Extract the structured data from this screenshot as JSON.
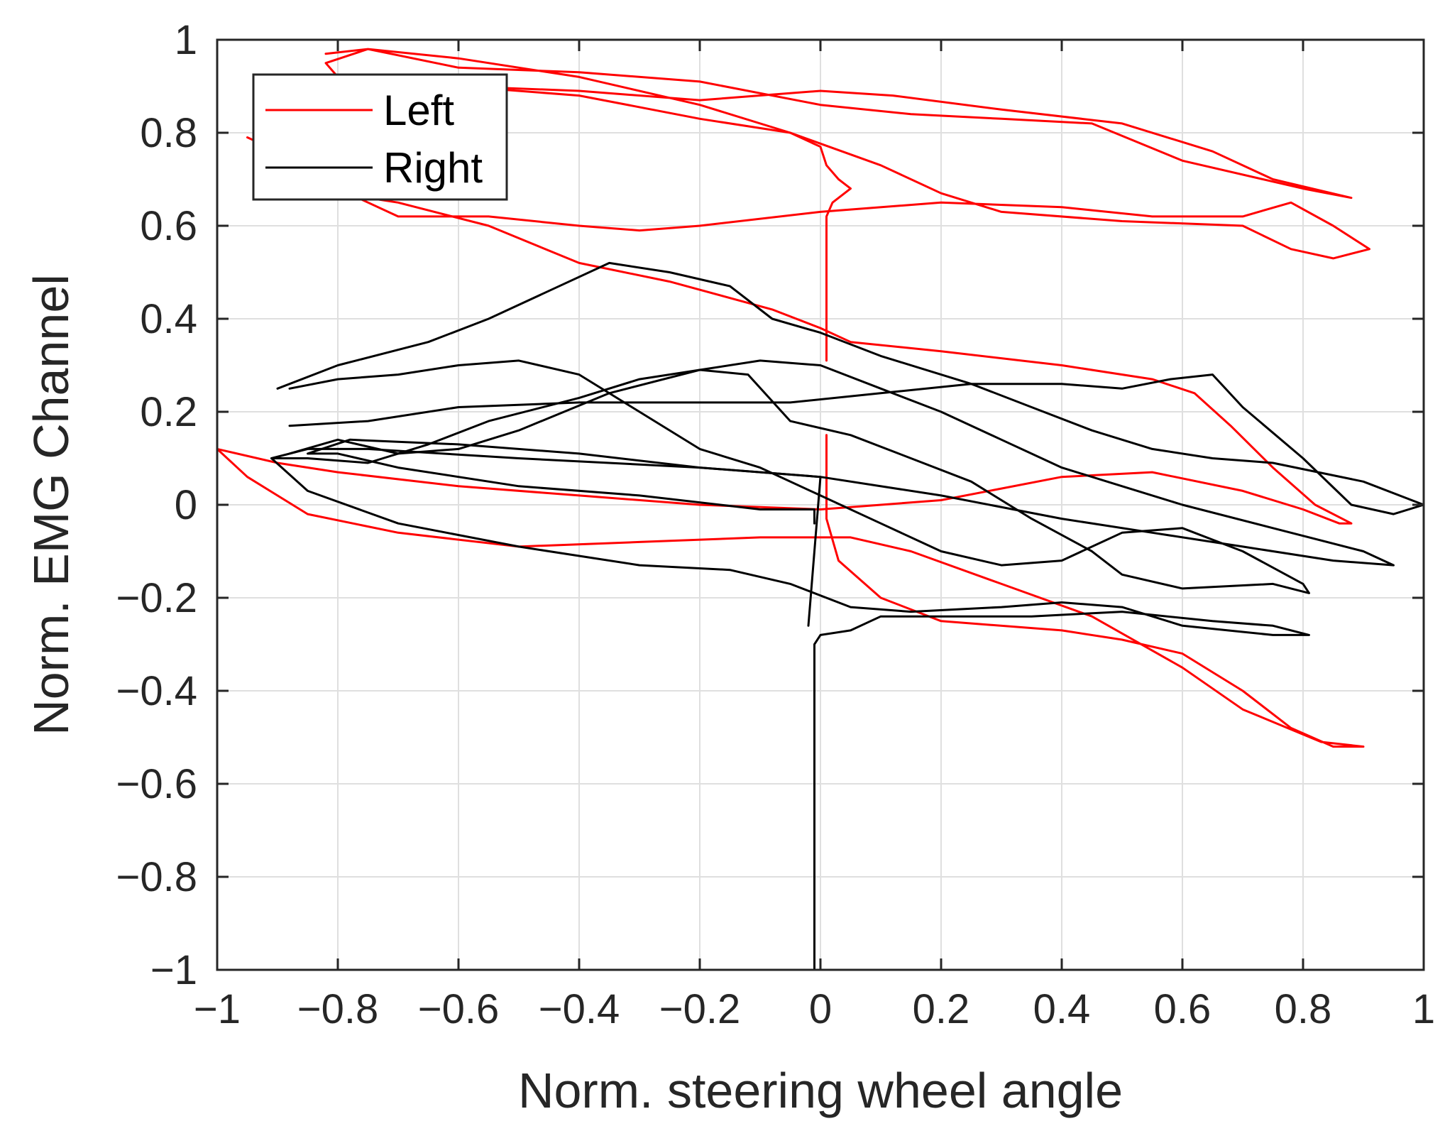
{
  "chart_data": {
    "type": "line",
    "title": "",
    "xlabel": "Norm. steering wheel angle",
    "ylabel": "Norm. EMG Channel",
    "xlim": [
      -1,
      1
    ],
    "ylim": [
      -1,
      1
    ],
    "grid": true,
    "legend_position": "top-left",
    "x_ticks": [
      -1,
      -0.8,
      -0.6,
      -0.4,
      -0.2,
      0,
      0.2,
      0.4,
      0.6,
      0.8,
      1
    ],
    "x_tick_labels": [
      "−1",
      "−0.8",
      "−0.6",
      "−0.4",
      "−0.2",
      "0",
      "0.2",
      "0.4",
      "0.6",
      "0.8",
      "1"
    ],
    "y_ticks": [
      -1,
      -0.8,
      -0.6,
      -0.4,
      -0.2,
      0,
      0.2,
      0.4,
      0.6,
      0.8,
      1
    ],
    "y_tick_labels": [
      "−1",
      "−0.8",
      "−0.6",
      "−0.4",
      "−0.2",
      "0",
      "0.2",
      "0.4",
      "0.6",
      "0.8",
      "1"
    ],
    "series": [
      {
        "name": "Left",
        "color": "#ff0000",
        "points": [
          [
            0.01,
            0.31
          ],
          [
            0.01,
            0.62
          ],
          [
            0.02,
            0.65
          ],
          [
            0.05,
            0.68
          ],
          [
            0.03,
            0.7
          ],
          [
            0.01,
            0.73
          ],
          [
            0.0,
            0.77
          ],
          [
            -0.05,
            0.8
          ],
          [
            -0.2,
            0.86
          ],
          [
            -0.4,
            0.92
          ],
          [
            -0.6,
            0.96
          ],
          [
            -0.75,
            0.98
          ],
          [
            -0.82,
            0.95
          ],
          [
            -0.8,
            0.92
          ],
          [
            -0.6,
            0.9
          ],
          [
            -0.4,
            0.89
          ],
          [
            -0.2,
            0.87
          ],
          [
            0.0,
            0.89
          ],
          [
            0.12,
            0.88
          ],
          [
            0.3,
            0.85
          ],
          [
            0.5,
            0.82
          ],
          [
            0.65,
            0.76
          ],
          [
            0.75,
            0.7
          ],
          [
            0.88,
            0.66
          ],
          [
            0.8,
            0.68
          ],
          [
            0.6,
            0.74
          ],
          [
            0.45,
            0.82
          ],
          [
            0.3,
            0.83
          ],
          [
            0.15,
            0.84
          ],
          [
            0.0,
            0.86
          ],
          [
            -0.2,
            0.91
          ],
          [
            -0.4,
            0.93
          ],
          [
            -0.6,
            0.94
          ],
          [
            -0.75,
            0.98
          ],
          [
            -0.82,
            0.97
          ]
        ]
      },
      {
        "name": "Left",
        "color": "#ff0000",
        "points": [
          [
            -0.95,
            0.79
          ],
          [
            -0.9,
            0.76
          ],
          [
            -0.8,
            0.68
          ],
          [
            -0.7,
            0.62
          ],
          [
            -0.55,
            0.62
          ],
          [
            -0.4,
            0.6
          ],
          [
            -0.3,
            0.59
          ],
          [
            -0.2,
            0.6
          ],
          [
            0.0,
            0.63
          ],
          [
            0.2,
            0.65
          ],
          [
            0.4,
            0.64
          ],
          [
            0.55,
            0.62
          ],
          [
            0.7,
            0.62
          ],
          [
            0.78,
            0.65
          ],
          [
            0.85,
            0.6
          ],
          [
            0.91,
            0.55
          ],
          [
            0.85,
            0.53
          ],
          [
            0.78,
            0.55
          ],
          [
            0.7,
            0.6
          ],
          [
            0.5,
            0.61
          ],
          [
            0.3,
            0.63
          ],
          [
            0.2,
            0.67
          ],
          [
            0.1,
            0.73
          ],
          [
            -0.05,
            0.8
          ],
          [
            -0.2,
            0.83
          ],
          [
            -0.4,
            0.88
          ],
          [
            -0.6,
            0.9
          ],
          [
            -0.75,
            0.92
          ]
        ]
      },
      {
        "name": "Left",
        "color": "#ff0000",
        "points": [
          [
            -1.0,
            0.12
          ],
          [
            -0.9,
            0.09
          ],
          [
            -0.8,
            0.07
          ],
          [
            -0.6,
            0.04
          ],
          [
            -0.4,
            0.02
          ],
          [
            -0.2,
            0.0
          ],
          [
            0.0,
            -0.01
          ],
          [
            0.2,
            0.01
          ],
          [
            0.4,
            0.06
          ],
          [
            0.55,
            0.07
          ],
          [
            0.7,
            0.03
          ],
          [
            0.8,
            -0.01
          ],
          [
            0.86,
            -0.04
          ],
          [
            0.88,
            -0.04
          ],
          [
            0.82,
            0.0
          ],
          [
            0.75,
            0.08
          ],
          [
            0.68,
            0.17
          ],
          [
            0.62,
            0.24
          ],
          [
            0.55,
            0.27
          ],
          [
            0.4,
            0.3
          ],
          [
            0.2,
            0.33
          ],
          [
            0.05,
            0.35
          ],
          [
            0.0,
            0.38
          ],
          [
            -0.08,
            0.42
          ],
          [
            -0.25,
            0.48
          ],
          [
            -0.4,
            0.52
          ],
          [
            -0.55,
            0.6
          ],
          [
            -0.7,
            0.65
          ],
          [
            -0.85,
            0.68
          ],
          [
            -0.93,
            0.7
          ]
        ]
      },
      {
        "name": "Left",
        "color": "#ff0000",
        "points": [
          [
            0.01,
            0.15
          ],
          [
            0.01,
            -0.03
          ],
          [
            0.03,
            -0.12
          ],
          [
            0.1,
            -0.2
          ],
          [
            0.2,
            -0.25
          ],
          [
            0.4,
            -0.27
          ],
          [
            0.5,
            -0.29
          ],
          [
            0.6,
            -0.32
          ],
          [
            0.7,
            -0.4
          ],
          [
            0.78,
            -0.48
          ],
          [
            0.85,
            -0.52
          ],
          [
            0.9,
            -0.52
          ],
          [
            0.83,
            -0.51
          ],
          [
            0.7,
            -0.44
          ],
          [
            0.6,
            -0.35
          ],
          [
            0.45,
            -0.24
          ],
          [
            0.3,
            -0.17
          ],
          [
            0.15,
            -0.1
          ],
          [
            0.05,
            -0.07
          ],
          [
            -0.1,
            -0.07
          ],
          [
            -0.3,
            -0.08
          ],
          [
            -0.5,
            -0.09
          ],
          [
            -0.7,
            -0.06
          ],
          [
            -0.85,
            -0.02
          ],
          [
            -0.95,
            0.06
          ],
          [
            -1.0,
            0.12
          ]
        ]
      },
      {
        "name": "Right",
        "color": "#000000",
        "points": [
          [
            -0.9,
            0.25
          ],
          [
            -0.8,
            0.3
          ],
          [
            -0.65,
            0.35
          ],
          [
            -0.55,
            0.4
          ],
          [
            -0.45,
            0.46
          ],
          [
            -0.35,
            0.52
          ],
          [
            -0.25,
            0.5
          ],
          [
            -0.15,
            0.47
          ],
          [
            -0.08,
            0.4
          ],
          [
            0.0,
            0.37
          ],
          [
            0.1,
            0.32
          ],
          [
            0.25,
            0.26
          ],
          [
            0.35,
            0.21
          ],
          [
            0.45,
            0.16
          ],
          [
            0.55,
            0.12
          ],
          [
            0.65,
            0.1
          ],
          [
            0.75,
            0.09
          ],
          [
            0.9,
            0.05
          ],
          [
            1.0,
            0.0
          ],
          [
            0.95,
            -0.02
          ],
          [
            0.88,
            0.0
          ],
          [
            0.8,
            0.1
          ],
          [
            0.7,
            0.21
          ],
          [
            0.65,
            0.28
          ],
          [
            0.58,
            0.27
          ],
          [
            0.5,
            0.25
          ],
          [
            0.4,
            0.26
          ],
          [
            0.25,
            0.26
          ],
          [
            0.1,
            0.24
          ],
          [
            -0.05,
            0.22
          ],
          [
            -0.2,
            0.22
          ],
          [
            -0.4,
            0.22
          ],
          [
            -0.6,
            0.21
          ],
          [
            -0.75,
            0.18
          ],
          [
            -0.88,
            0.17
          ]
        ]
      },
      {
        "name": "Right",
        "color": "#000000",
        "points": [
          [
            -0.88,
            0.25
          ],
          [
            -0.8,
            0.27
          ],
          [
            -0.7,
            0.28
          ],
          [
            -0.6,
            0.3
          ],
          [
            -0.5,
            0.31
          ],
          [
            -0.4,
            0.28
          ],
          [
            -0.3,
            0.2
          ],
          [
            -0.2,
            0.12
          ],
          [
            -0.1,
            0.08
          ],
          [
            0.0,
            0.02
          ],
          [
            0.1,
            -0.04
          ],
          [
            0.2,
            -0.1
          ],
          [
            0.3,
            -0.13
          ],
          [
            0.4,
            -0.12
          ],
          [
            0.5,
            -0.06
          ],
          [
            0.6,
            -0.05
          ],
          [
            0.7,
            -0.1
          ],
          [
            0.8,
            -0.17
          ],
          [
            0.81,
            -0.19
          ],
          [
            0.75,
            -0.17
          ],
          [
            0.6,
            -0.18
          ],
          [
            0.5,
            -0.15
          ],
          [
            0.45,
            -0.1
          ],
          [
            0.35,
            -0.03
          ],
          [
            0.25,
            0.05
          ],
          [
            0.15,
            0.1
          ],
          [
            0.05,
            0.15
          ],
          [
            -0.05,
            0.18
          ],
          [
            -0.12,
            0.28
          ],
          [
            -0.2,
            0.29
          ],
          [
            -0.3,
            0.27
          ],
          [
            -0.4,
            0.23
          ],
          [
            -0.55,
            0.18
          ],
          [
            -0.65,
            0.13
          ],
          [
            -0.75,
            0.09
          ],
          [
            -0.85,
            0.1
          ],
          [
            -0.91,
            0.1
          ]
        ]
      },
      {
        "name": "Right",
        "color": "#000000",
        "points": [
          [
            -0.01,
            -0.04
          ],
          [
            -0.01,
            -0.01
          ],
          [
            -0.1,
            -0.01
          ],
          [
            -0.3,
            0.02
          ],
          [
            -0.5,
            0.04
          ],
          [
            -0.7,
            0.08
          ],
          [
            -0.8,
            0.11
          ],
          [
            -0.85,
            0.11
          ],
          [
            -0.78,
            0.14
          ],
          [
            -0.6,
            0.13
          ],
          [
            -0.4,
            0.11
          ],
          [
            -0.2,
            0.08
          ],
          [
            0.0,
            0.06
          ],
          [
            0.2,
            0.02
          ],
          [
            0.4,
            -0.03
          ],
          [
            0.55,
            -0.06
          ],
          [
            0.7,
            -0.09
          ],
          [
            0.85,
            -0.12
          ],
          [
            0.95,
            -0.13
          ],
          [
            0.9,
            -0.1
          ],
          [
            0.75,
            -0.05
          ],
          [
            0.6,
            0.0
          ],
          [
            0.5,
            0.04
          ],
          [
            0.4,
            0.08
          ],
          [
            0.3,
            0.14
          ],
          [
            0.2,
            0.2
          ],
          [
            0.1,
            0.25
          ],
          [
            0.0,
            0.3
          ],
          [
            -0.1,
            0.31
          ],
          [
            -0.2,
            0.29
          ],
          [
            -0.35,
            0.24
          ],
          [
            -0.5,
            0.16
          ],
          [
            -0.6,
            0.12
          ],
          [
            -0.7,
            0.11
          ],
          [
            -0.8,
            0.14
          ],
          [
            -0.88,
            0.11
          ]
        ]
      },
      {
        "name": "Right",
        "color": "#000000",
        "points": [
          [
            -0.01,
            -1.0
          ],
          [
            -0.01,
            -0.3
          ],
          [
            0.0,
            -0.28
          ],
          [
            0.05,
            -0.27
          ],
          [
            0.1,
            -0.24
          ],
          [
            0.2,
            -0.24
          ],
          [
            0.35,
            -0.24
          ],
          [
            0.5,
            -0.23
          ],
          [
            0.65,
            -0.25
          ],
          [
            0.75,
            -0.26
          ],
          [
            0.81,
            -0.28
          ],
          [
            0.75,
            -0.28
          ],
          [
            0.6,
            -0.26
          ],
          [
            0.5,
            -0.22
          ],
          [
            0.4,
            -0.21
          ],
          [
            0.3,
            -0.22
          ],
          [
            0.15,
            -0.23
          ],
          [
            0.05,
            -0.22
          ],
          [
            -0.05,
            -0.17
          ],
          [
            -0.15,
            -0.14
          ],
          [
            -0.3,
            -0.13
          ],
          [
            -0.5,
            -0.09
          ],
          [
            -0.7,
            -0.04
          ],
          [
            -0.85,
            0.03
          ],
          [
            -0.91,
            0.1
          ],
          [
            -0.85,
            0.12
          ],
          [
            -0.75,
            0.12
          ],
          [
            -0.5,
            0.1
          ],
          [
            -0.2,
            0.08
          ],
          [
            0.0,
            0.06
          ],
          [
            -0.02,
            -0.26
          ]
        ]
      }
    ]
  }
}
